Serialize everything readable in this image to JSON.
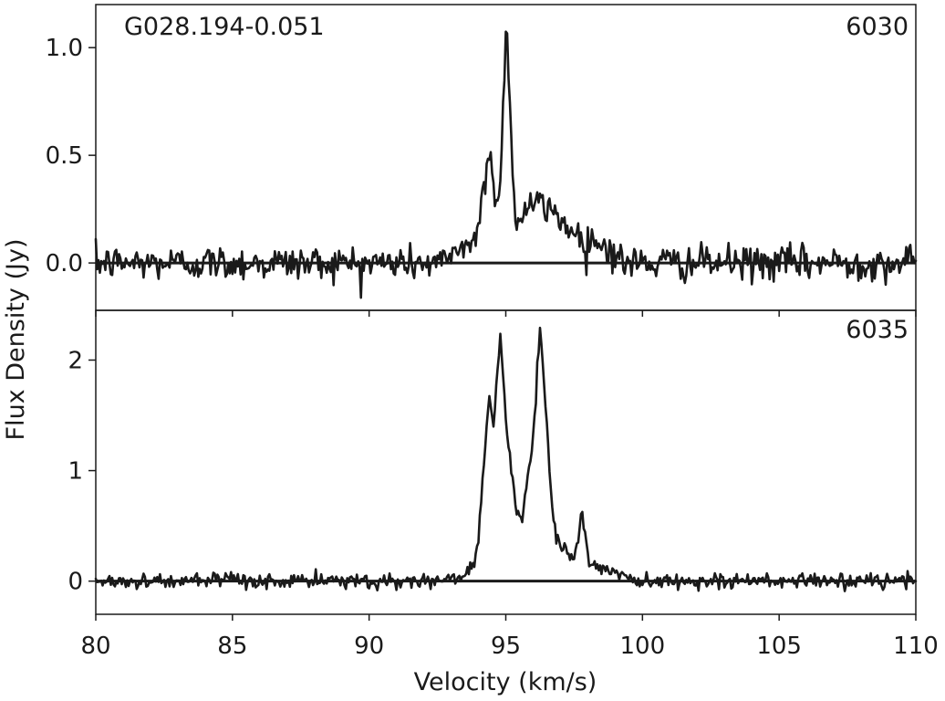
{
  "chart_data": {
    "type": "line",
    "source_label": "G028.194-0.051",
    "xlabel": "Velocity (km/s)",
    "ylabel": "Flux Density (Jy)",
    "xlim": [
      80,
      110
    ],
    "x_ticks": [
      80,
      85,
      90,
      95,
      100,
      105,
      110
    ],
    "x_tick_labels": [
      "80",
      "85",
      "90",
      "95",
      "100",
      "105",
      "110"
    ],
    "panels": [
      {
        "label": "6030",
        "ylim": [
          -0.22,
          1.2
        ],
        "y_ticks": [
          0.0,
          0.5,
          1.0
        ],
        "y_tick_labels": [
          "0.0",
          "0.5",
          "1.0"
        ],
        "noise_rms": 0.04,
        "features": [
          [
            93.0,
            93.9,
            0.06,
            0.1
          ],
          [
            93.9,
            94.0,
            0.1,
            0.2
          ],
          [
            94.0,
            94.15,
            0.2,
            0.3
          ],
          [
            94.15,
            94.35,
            0.3,
            0.48
          ],
          [
            94.35,
            94.42,
            0.48,
            0.53
          ],
          [
            94.42,
            94.55,
            0.53,
            0.42
          ],
          [
            94.55,
            94.65,
            0.42,
            0.28
          ],
          [
            94.65,
            94.75,
            0.28,
            0.26
          ],
          [
            94.75,
            94.85,
            0.26,
            0.55
          ],
          [
            94.85,
            94.95,
            0.55,
            0.9
          ],
          [
            94.95,
            95.02,
            0.9,
            1.11
          ],
          [
            95.02,
            95.1,
            1.11,
            0.92
          ],
          [
            95.1,
            95.25,
            0.92,
            0.45
          ],
          [
            95.25,
            95.35,
            0.45,
            0.2
          ],
          [
            95.35,
            95.5,
            0.2,
            0.16
          ],
          [
            95.5,
            96.0,
            0.22,
            0.28
          ],
          [
            96.0,
            97.0,
            0.28,
            0.22
          ],
          [
            97.0,
            97.5,
            0.2,
            0.14
          ],
          [
            97.5,
            98.5,
            0.13,
            0.09
          ],
          [
            98.5,
            99.2,
            0.09,
            0.02
          ]
        ]
      },
      {
        "label": "6035",
        "ylim": [
          -0.3,
          2.45
        ],
        "y_ticks": [
          0,
          1,
          2
        ],
        "y_tick_labels": [
          "0",
          "1",
          "2"
        ],
        "noise_rms": 0.035,
        "features": [
          [
            92.5,
            93.5,
            0.0,
            0.05
          ],
          [
            93.5,
            93.8,
            0.05,
            0.15
          ],
          [
            93.8,
            94.0,
            0.15,
            0.4
          ],
          [
            94.0,
            94.4,
            0.4,
            1.72
          ],
          [
            94.4,
            94.55,
            1.72,
            1.4
          ],
          [
            94.55,
            94.8,
            1.4,
            2.25
          ],
          [
            94.8,
            95.05,
            2.25,
            1.3
          ],
          [
            95.05,
            95.4,
            1.3,
            0.58
          ],
          [
            95.4,
            95.6,
            0.58,
            0.6
          ],
          [
            95.6,
            95.9,
            0.6,
            1.05
          ],
          [
            95.9,
            96.1,
            1.05,
            1.65
          ],
          [
            96.1,
            96.25,
            1.65,
            2.32
          ],
          [
            96.25,
            96.45,
            2.32,
            1.6
          ],
          [
            96.45,
            96.7,
            1.6,
            0.65
          ],
          [
            96.7,
            96.9,
            0.65,
            0.35
          ],
          [
            96.9,
            97.5,
            0.3,
            0.24
          ],
          [
            97.5,
            97.8,
            0.24,
            0.6
          ],
          [
            97.8,
            98.0,
            0.6,
            0.3
          ],
          [
            98.0,
            98.6,
            0.15,
            0.1
          ],
          [
            98.6,
            99.5,
            0.1,
            0.03
          ]
        ]
      }
    ]
  }
}
